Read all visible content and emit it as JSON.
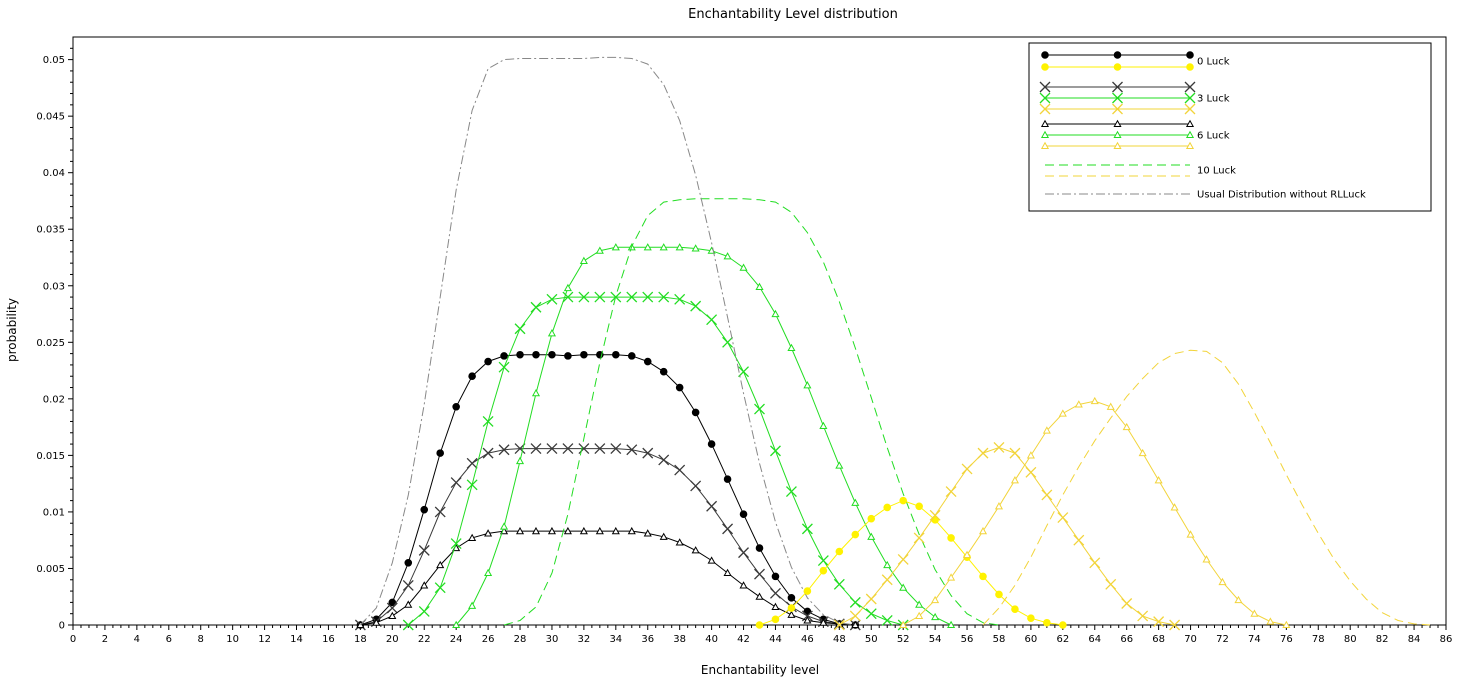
{
  "chart_data": {
    "type": "line",
    "title": "Enchantability Level distribution",
    "xlabel": "Enchantability level",
    "ylabel": "probability",
    "xlim": [
      0,
      86
    ],
    "ylim": [
      0,
      0.052
    ],
    "xticks": [
      0,
      2,
      4,
      6,
      8,
      10,
      12,
      14,
      16,
      18,
      20,
      22,
      24,
      26,
      28,
      30,
      32,
      34,
      36,
      38,
      40,
      42,
      44,
      46,
      48,
      50,
      52,
      54,
      56,
      58,
      60,
      62,
      64,
      66,
      68,
      70,
      72,
      74,
      76,
      78,
      80,
      82,
      84,
      86
    ],
    "yticks": [
      0,
      0.005,
      0.01,
      0.015,
      0.02,
      0.025,
      0.03,
      0.035,
      0.04,
      0.045,
      0.05
    ],
    "ytick_labels": [
      "0",
      "0.005",
      "0.01",
      "0.015",
      "0.02",
      "0.025",
      "0.03",
      "0.035",
      "0.04",
      "0.045",
      "0.05"
    ],
    "grid": false,
    "legend_position": "top-right",
    "legend": [
      {
        "label": "0 Luck",
        "groups": [
          "black_dot",
          "yellow_dot"
        ]
      },
      {
        "label": "3 Luck",
        "groups": [
          "black_x",
          "green_x",
          "yellow_x"
        ]
      },
      {
        "label": "6 Luck",
        "groups": [
          "black_tri",
          "green_tri",
          "yellow_tri"
        ]
      },
      {
        "label": "10 Luck",
        "groups": [
          "green_dash",
          "yellow_dash"
        ]
      },
      {
        "label": "Usual Distribution without RLLuck",
        "groups": [
          "gray_dashdot"
        ]
      }
    ],
    "styles": {
      "black_dot": {
        "color": "#000000",
        "marker": "dot",
        "dash": "solid"
      },
      "yellow_dot": {
        "color": "#FFF200",
        "marker": "dot",
        "dash": "solid"
      },
      "black_x": {
        "color": "#3a3a3a",
        "marker": "x",
        "dash": "solid"
      },
      "green_x": {
        "color": "#22DD22",
        "marker": "x",
        "dash": "solid"
      },
      "yellow_x": {
        "color": "#F2D43A",
        "marker": "x",
        "dash": "solid"
      },
      "black_tri": {
        "color": "#000000",
        "marker": "triangle",
        "dash": "solid"
      },
      "green_tri": {
        "color": "#22DD22",
        "marker": "triangle",
        "dash": "solid"
      },
      "yellow_tri": {
        "color": "#F2D43A",
        "marker": "triangle",
        "dash": "solid"
      },
      "green_dash": {
        "color": "#22DD22",
        "marker": "none",
        "dash": "dashed"
      },
      "yellow_dash": {
        "color": "#F2D43A",
        "marker": "none",
        "dash": "dashed"
      },
      "gray_dashdot": {
        "color": "#888888",
        "marker": "none",
        "dash": "dashdot"
      }
    },
    "series": [
      {
        "style": "black_dot",
        "x": [
          18,
          19,
          20,
          21,
          22,
          23,
          24,
          25,
          26,
          27,
          28,
          29,
          30,
          31,
          32,
          33,
          34,
          35,
          36,
          37,
          38,
          39,
          40,
          41,
          42,
          43,
          44,
          45,
          46,
          47,
          48,
          49
        ],
        "y": [
          0,
          0.0005,
          0.002,
          0.0055,
          0.0102,
          0.0152,
          0.0193,
          0.022,
          0.0233,
          0.0238,
          0.0239,
          0.0239,
          0.0239,
          0.0238,
          0.0239,
          0.0239,
          0.0239,
          0.0238,
          0.0233,
          0.0224,
          0.021,
          0.0188,
          0.016,
          0.0129,
          0.0098,
          0.0068,
          0.0043,
          0.0024,
          0.0012,
          0.0005,
          0.0001,
          0
        ]
      },
      {
        "style": "black_x",
        "x": [
          18,
          19,
          20,
          21,
          22,
          23,
          24,
          25,
          26,
          27,
          28,
          29,
          30,
          31,
          32,
          33,
          34,
          35,
          36,
          37,
          38,
          39,
          40,
          41,
          42,
          43,
          44,
          45,
          46,
          47,
          48,
          49
        ],
        "y": [
          0,
          0.0003,
          0.0015,
          0.0035,
          0.0066,
          0.01,
          0.0126,
          0.0143,
          0.0152,
          0.0155,
          0.0156,
          0.0156,
          0.0156,
          0.0156,
          0.0156,
          0.0156,
          0.0156,
          0.0155,
          0.0152,
          0.0146,
          0.0137,
          0.0123,
          0.0105,
          0.0085,
          0.0064,
          0.0045,
          0.0028,
          0.0016,
          0.0008,
          0.0003,
          0.0001,
          0
        ]
      },
      {
        "style": "black_tri",
        "x": [
          18,
          19,
          20,
          21,
          22,
          23,
          24,
          25,
          26,
          27,
          28,
          29,
          30,
          31,
          32,
          33,
          34,
          35,
          36,
          37,
          38,
          39,
          40,
          41,
          42,
          43,
          44,
          45,
          46,
          47,
          48,
          49
        ],
        "y": [
          0,
          0.0002,
          0.0008,
          0.0018,
          0.0035,
          0.0053,
          0.0068,
          0.0077,
          0.0081,
          0.0083,
          0.0083,
          0.0083,
          0.0083,
          0.0083,
          0.0083,
          0.0083,
          0.0083,
          0.0083,
          0.0081,
          0.0078,
          0.0073,
          0.0066,
          0.0057,
          0.0046,
          0.0035,
          0.0025,
          0.0016,
          0.0009,
          0.0004,
          0.0002,
          0.0001,
          0
        ]
      },
      {
        "style": "green_x",
        "x": [
          21,
          22,
          23,
          24,
          25,
          26,
          27,
          28,
          29,
          30,
          31,
          32,
          33,
          34,
          35,
          36,
          37,
          38,
          39,
          40,
          41,
          42,
          43,
          44,
          45,
          46,
          47,
          48,
          49,
          50,
          51,
          52
        ],
        "y": [
          0,
          0.0012,
          0.0033,
          0.0072,
          0.0124,
          0.018,
          0.0228,
          0.0262,
          0.0281,
          0.0288,
          0.029,
          0.029,
          0.029,
          0.029,
          0.029,
          0.029,
          0.029,
          0.0288,
          0.0282,
          0.027,
          0.025,
          0.0224,
          0.0191,
          0.0154,
          0.0118,
          0.0085,
          0.0057,
          0.0036,
          0.002,
          0.001,
          0.0004,
          0
        ]
      },
      {
        "style": "green_tri",
        "x": [
          24,
          25,
          26,
          27,
          28,
          29,
          30,
          31,
          32,
          33,
          34,
          35,
          36,
          37,
          38,
          39,
          40,
          41,
          42,
          43,
          44,
          45,
          46,
          47,
          48,
          49,
          50,
          51,
          52,
          53,
          54,
          55
        ],
        "y": [
          0,
          0.0017,
          0.0046,
          0.0087,
          0.0145,
          0.0205,
          0.0258,
          0.0298,
          0.0322,
          0.0331,
          0.0334,
          0.0334,
          0.0334,
          0.0334,
          0.0334,
          0.0333,
          0.0331,
          0.0326,
          0.0316,
          0.0299,
          0.0275,
          0.0245,
          0.0212,
          0.0176,
          0.0141,
          0.0108,
          0.0078,
          0.0053,
          0.0033,
          0.0018,
          0.0007,
          0
        ]
      },
      {
        "style": "green_dash",
        "x": [
          27,
          28,
          29,
          30,
          31,
          32,
          33,
          34,
          35,
          36,
          37,
          38,
          39,
          40,
          41,
          42,
          43,
          44,
          45,
          46,
          47,
          48,
          49,
          50,
          51,
          52,
          53,
          54,
          55,
          56,
          57,
          58
        ],
        "y": [
          0,
          0.0004,
          0.0016,
          0.0046,
          0.0098,
          0.0165,
          0.0232,
          0.0291,
          0.0335,
          0.0362,
          0.0374,
          0.0376,
          0.0377,
          0.0377,
          0.0377,
          0.0377,
          0.0376,
          0.0374,
          0.0365,
          0.0347,
          0.0321,
          0.0286,
          0.0245,
          0.0201,
          0.0157,
          0.0116,
          0.008,
          0.0049,
          0.0026,
          0.001,
          0.0002,
          0
        ]
      },
      {
        "style": "gray_dashdot",
        "x": [
          18,
          19,
          20,
          21,
          22,
          23,
          24,
          25,
          26,
          27,
          28,
          29,
          30,
          31,
          32,
          33,
          34,
          35,
          36,
          37,
          38,
          39,
          40,
          41,
          42,
          43,
          44,
          45,
          46,
          47,
          48,
          49
        ],
        "y": [
          0,
          0.0015,
          0.0055,
          0.0115,
          0.0195,
          0.029,
          0.0385,
          0.0455,
          0.0492,
          0.05,
          0.0501,
          0.0501,
          0.0501,
          0.0501,
          0.0501,
          0.0502,
          0.0502,
          0.0501,
          0.0496,
          0.0478,
          0.0446,
          0.0398,
          0.0338,
          0.0272,
          0.0205,
          0.0143,
          0.0091,
          0.0051,
          0.0024,
          0.0009,
          0.0002,
          0
        ]
      },
      {
        "style": "yellow_dot",
        "x": [
          43,
          44,
          45,
          46,
          47,
          48,
          49,
          50,
          51,
          52,
          53,
          54,
          55,
          56,
          57,
          58,
          59,
          60,
          61,
          62
        ],
        "y": [
          0,
          0.0005,
          0.0015,
          0.003,
          0.0048,
          0.0065,
          0.008,
          0.0094,
          0.0104,
          0.011,
          0.0105,
          0.0093,
          0.0077,
          0.006,
          0.0043,
          0.0027,
          0.0014,
          0.0006,
          0.0002,
          0
        ]
      },
      {
        "style": "yellow_x",
        "x": [
          48,
          49,
          50,
          51,
          52,
          53,
          54,
          55,
          56,
          57,
          58,
          59,
          60,
          61,
          62,
          63,
          64,
          65,
          66,
          67,
          68,
          69
        ],
        "y": [
          0,
          0.0008,
          0.0023,
          0.004,
          0.0058,
          0.0077,
          0.0097,
          0.0118,
          0.0138,
          0.0152,
          0.0157,
          0.0152,
          0.0135,
          0.0115,
          0.0095,
          0.0075,
          0.0055,
          0.0036,
          0.0019,
          0.0008,
          0.0003,
          0
        ]
      },
      {
        "style": "yellow_tri",
        "x": [
          52,
          53,
          54,
          55,
          56,
          57,
          58,
          59,
          60,
          61,
          62,
          63,
          64,
          65,
          66,
          67,
          68,
          69,
          70,
          71,
          72,
          73,
          74,
          75,
          76
        ],
        "y": [
          0,
          0.0008,
          0.0022,
          0.0042,
          0.0062,
          0.0083,
          0.0105,
          0.0128,
          0.015,
          0.0172,
          0.0187,
          0.0195,
          0.0198,
          0.0193,
          0.0175,
          0.0152,
          0.0128,
          0.0104,
          0.008,
          0.0058,
          0.0038,
          0.0022,
          0.001,
          0.0003,
          0
        ]
      },
      {
        "style": "yellow_dash",
        "x": [
          57,
          58,
          59,
          60,
          61,
          62,
          63,
          64,
          65,
          66,
          67,
          68,
          69,
          70,
          71,
          72,
          73,
          74,
          75,
          76,
          77,
          78,
          79,
          80,
          81,
          82,
          83,
          84,
          85
        ],
        "y": [
          0,
          0.0015,
          0.0035,
          0.006,
          0.0088,
          0.0115,
          0.014,
          0.0163,
          0.0183,
          0.0202,
          0.0218,
          0.0232,
          0.024,
          0.0243,
          0.0242,
          0.0232,
          0.0213,
          0.0188,
          0.0161,
          0.0133,
          0.0106,
          0.0081,
          0.0058,
          0.0039,
          0.0023,
          0.0011,
          0.0004,
          0.0001,
          0
        ]
      }
    ]
  }
}
